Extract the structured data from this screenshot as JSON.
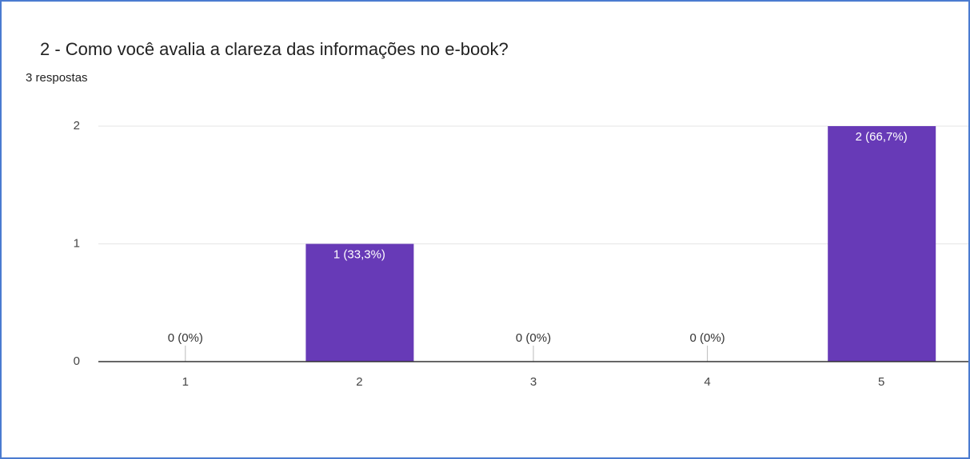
{
  "chart_data": {
    "type": "bar",
    "title": "2 -  Como você avalia a clareza das informações no e-book?",
    "subtitle": "3 respostas",
    "categories": [
      "1",
      "2",
      "3",
      "4",
      "5"
    ],
    "values": [
      0,
      1,
      0,
      0,
      2
    ],
    "value_labels": [
      "0 (0%)",
      "1 (33,3%)",
      "0 (0%)",
      "0 (0%)",
      "2 (66,7%)"
    ],
    "color": "#673ab7",
    "ylim": [
      0,
      2
    ],
    "yticks": [
      0,
      1,
      2
    ],
    "grid": true
  }
}
